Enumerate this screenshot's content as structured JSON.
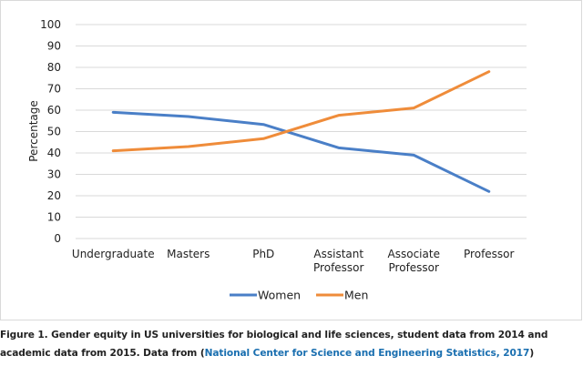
{
  "chart_data": {
    "type": "line",
    "categories": [
      [
        "Undergraduate"
      ],
      [
        "Masters"
      ],
      [
        "PhD"
      ],
      [
        "Assistant",
        "Professor"
      ],
      [
        "Associate",
        "Professor"
      ],
      [
        "Professor"
      ]
    ],
    "series": [
      {
        "name": "Women",
        "color": "#4a7fc7",
        "values": [
          59,
          57,
          53.3,
          42.4,
          39,
          22
        ]
      },
      {
        "name": "Men",
        "color": "#ef8c3a",
        "values": [
          41,
          43,
          46.7,
          57.6,
          61,
          78
        ]
      }
    ],
    "ylabel": "Percentage",
    "ylim": [
      0,
      100
    ],
    "yticks": [
      0,
      10,
      20,
      30,
      40,
      50,
      60,
      70,
      80,
      90,
      100
    ],
    "grid": true,
    "legend_position": "bottom-center"
  },
  "caption": {
    "text": "Figure 1. Gender equity in US universities for biological and life sciences, student data from 2014 and academic data from 2015. Data from (",
    "link_text": "National Center for Science and Engineering Statistics, 2017",
    "closing": ")"
  }
}
